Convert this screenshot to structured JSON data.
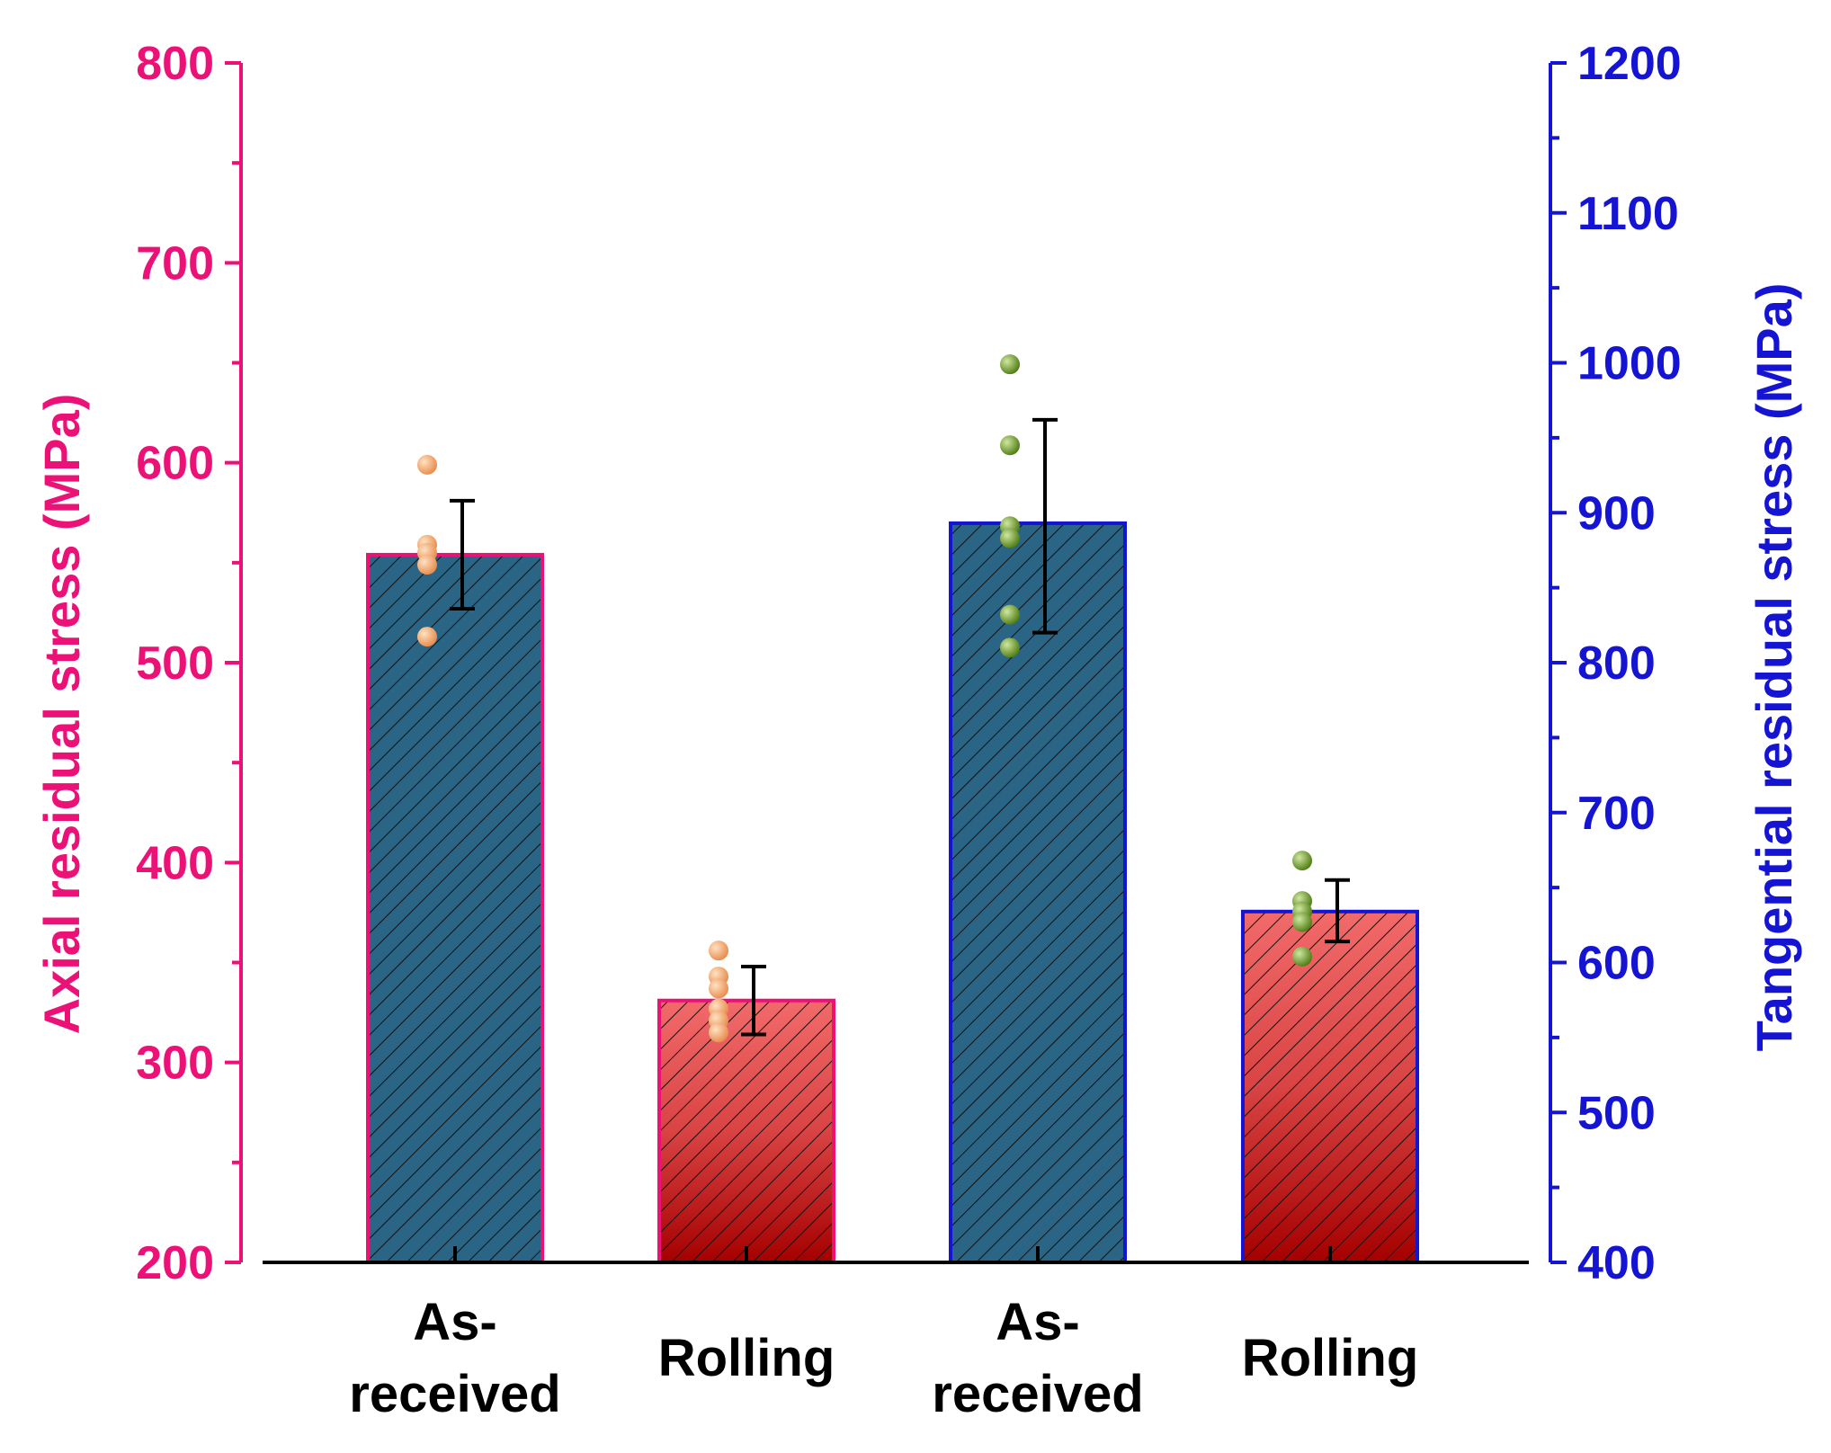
{
  "chart_data": {
    "type": "bar",
    "categories": [
      {
        "lines": [
          "As-",
          "received"
        ],
        "axis": "left"
      },
      {
        "lines": [
          "Rolling"
        ],
        "axis": "left"
      },
      {
        "lines": [
          "As-",
          "received"
        ],
        "axis": "right"
      },
      {
        "lines": [
          "Rolling"
        ],
        "axis": "right"
      }
    ],
    "left_axis": {
      "label": "Axial residual stress (MPa)",
      "min": 200,
      "max": 800,
      "ticks": [
        "200",
        "300",
        "400",
        "500",
        "600",
        "700",
        "800"
      ],
      "color": "#ec1177"
    },
    "right_axis": {
      "label": "Tangential residual stress (MPa)",
      "min": 400,
      "max": 1200,
      "ticks": [
        "400",
        "500",
        "600",
        "700",
        "800",
        "900",
        "1000",
        "1100",
        "1200"
      ],
      "color": "#1414d2"
    },
    "bars": [
      {
        "category": "As-received",
        "axis": "left",
        "value": 554,
        "error_low": 527,
        "error_high": 581,
        "fill": "#2a6585",
        "border": "#ec1177",
        "point_color": "#f2a06a",
        "points": [
          599,
          559,
          555,
          549,
          513
        ]
      },
      {
        "category": "Rolling",
        "axis": "left",
        "value": 331,
        "error_low": 314,
        "error_high": 348,
        "fill": "gradient-red",
        "border": "#ec1177",
        "point_color": "#f2a06a",
        "points": [
          356,
          343,
          337,
          327,
          321,
          315
        ]
      },
      {
        "category": "As-received",
        "axis": "right",
        "value": 893,
        "error_low": 820,
        "error_high": 962,
        "fill": "#2a6585",
        "border": "#1414d2",
        "point_color": "#6b9a1f",
        "points": [
          999,
          945,
          891,
          883,
          832,
          810
        ]
      },
      {
        "category": "Rolling",
        "axis": "right",
        "value": 634,
        "error_low": 614,
        "error_high": 655,
        "fill": "gradient-red",
        "border": "#1414d2",
        "point_color": "#6b9a1f",
        "points": [
          668,
          641,
          634,
          627,
          604
        ]
      }
    ]
  }
}
